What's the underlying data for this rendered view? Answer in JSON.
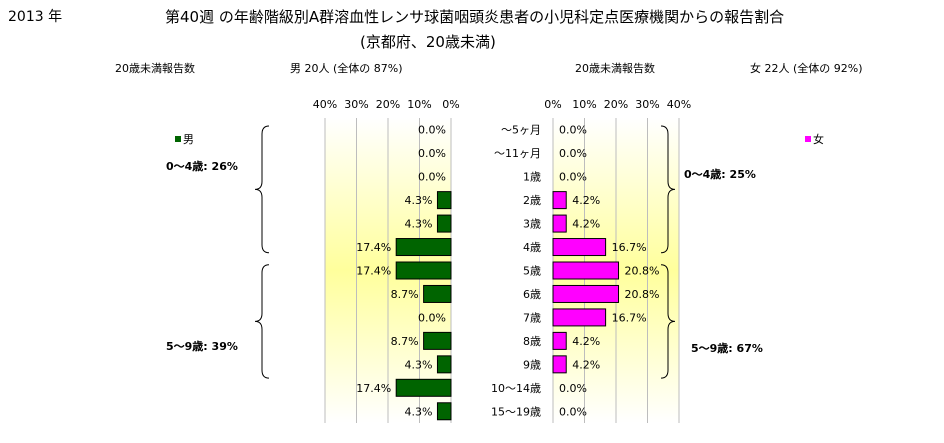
{
  "header": {
    "year": "2013 年",
    "title_line1": "第40週 の年齢階級別A群溶血性レンサ球菌咽頭炎患者の小児科定点医療機関からの報告割合",
    "title_line2": "(京都府、20歳未満)",
    "left_label": "20歳未満報告数",
    "left_value": "男  20人 (全体の  87%)",
    "right_label": "20歳未満報告数",
    "right_value": "女  22人 (全体の  92%)"
  },
  "chart_data": [
    {
      "type": "bar",
      "orientation": "horizontal",
      "direction": "right-to-left",
      "categories": [
        "～5ヶ月",
        "～11ヶ月",
        "1歳",
        "2歳",
        "3歳",
        "4歳",
        "5歳",
        "6歳",
        "7歳",
        "8歳",
        "9歳",
        "10～14歳",
        "15～19歳"
      ],
      "series": [
        {
          "name": "男",
          "values": [
            0.0,
            0.0,
            0.0,
            4.3,
            4.3,
            17.4,
            17.4,
            8.7,
            0.0,
            8.7,
            4.3,
            17.4,
            4.3
          ],
          "color": "#006400"
        }
      ],
      "data_labels": [
        "0.0%",
        "0.0%",
        "0.0%",
        "4.3%",
        "4.3%",
        "17.4%",
        "17.4%",
        "8.7%",
        "0.0%",
        "8.7%",
        "4.3%",
        "17.4%",
        "4.3%"
      ],
      "xlim": [
        0,
        40
      ],
      "ticks": [
        "40%",
        "30%",
        "20%",
        "10%",
        "0%"
      ],
      "legend": "top-left",
      "annotations": [
        {
          "label": "0～4歳:  26%"
        },
        {
          "label": "5～9歳:  39%"
        }
      ]
    },
    {
      "type": "bar",
      "orientation": "horizontal",
      "direction": "left-to-right",
      "categories": [
        "～5ヶ月",
        "～11ヶ月",
        "1歳",
        "2歳",
        "3歳",
        "4歳",
        "5歳",
        "6歳",
        "7歳",
        "8歳",
        "9歳",
        "10～14歳",
        "15～19歳"
      ],
      "series": [
        {
          "name": "女",
          "values": [
            0.0,
            0.0,
            0.0,
            4.2,
            4.2,
            16.7,
            20.8,
            20.8,
            16.7,
            4.2,
            4.2,
            0.0,
            0.0
          ],
          "color": "#ff00ff"
        }
      ],
      "data_labels": [
        "0.0%",
        "0.0%",
        "0.0%",
        "4.2%",
        "4.2%",
        "16.7%",
        "20.8%",
        "20.8%",
        "16.7%",
        "4.2%",
        "4.2%",
        "0.0%",
        "0.0%"
      ],
      "xlim": [
        0,
        40
      ],
      "ticks": [
        "0%",
        "10%",
        "20%",
        "30%",
        "40%"
      ],
      "legend": "top-right",
      "annotations": [
        {
          "label": "0～4歳:  25%"
        },
        {
          "label": "5～9歳:  67%"
        }
      ]
    }
  ],
  "colors": {
    "male": "#006400",
    "female": "#ff00ff",
    "plot_gradient_edge": "#ffffff",
    "plot_gradient_center": "#ffff9c"
  }
}
